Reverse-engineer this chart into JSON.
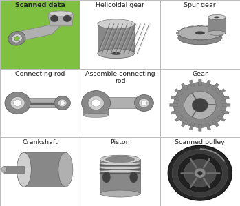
{
  "grid_rows": 3,
  "grid_cols": 3,
  "cell_labels": [
    [
      "Scanned data",
      "Helicoidal gear",
      "Spur gear"
    ],
    [
      "Connecting rod",
      "Assemble connecting\nrod",
      "Gear"
    ],
    [
      "Crankshaft",
      "Piston",
      "Scanned pulley"
    ]
  ],
  "highlight_cell": [
    0,
    0
  ],
  "highlight_bg": "#80c040",
  "normal_bg": "#ffffff",
  "border_color": "#bbbbbb",
  "text_color": "#222222",
  "label_fontsize": 6.8,
  "fig_bg": "#ffffff",
  "fig_width": 3.49,
  "fig_height": 2.99,
  "dpi": 100,
  "gray1": "#b0b0b0",
  "gray2": "#888888",
  "gray3": "#d0d0d0",
  "gray4": "#606060",
  "gray5": "#404040"
}
